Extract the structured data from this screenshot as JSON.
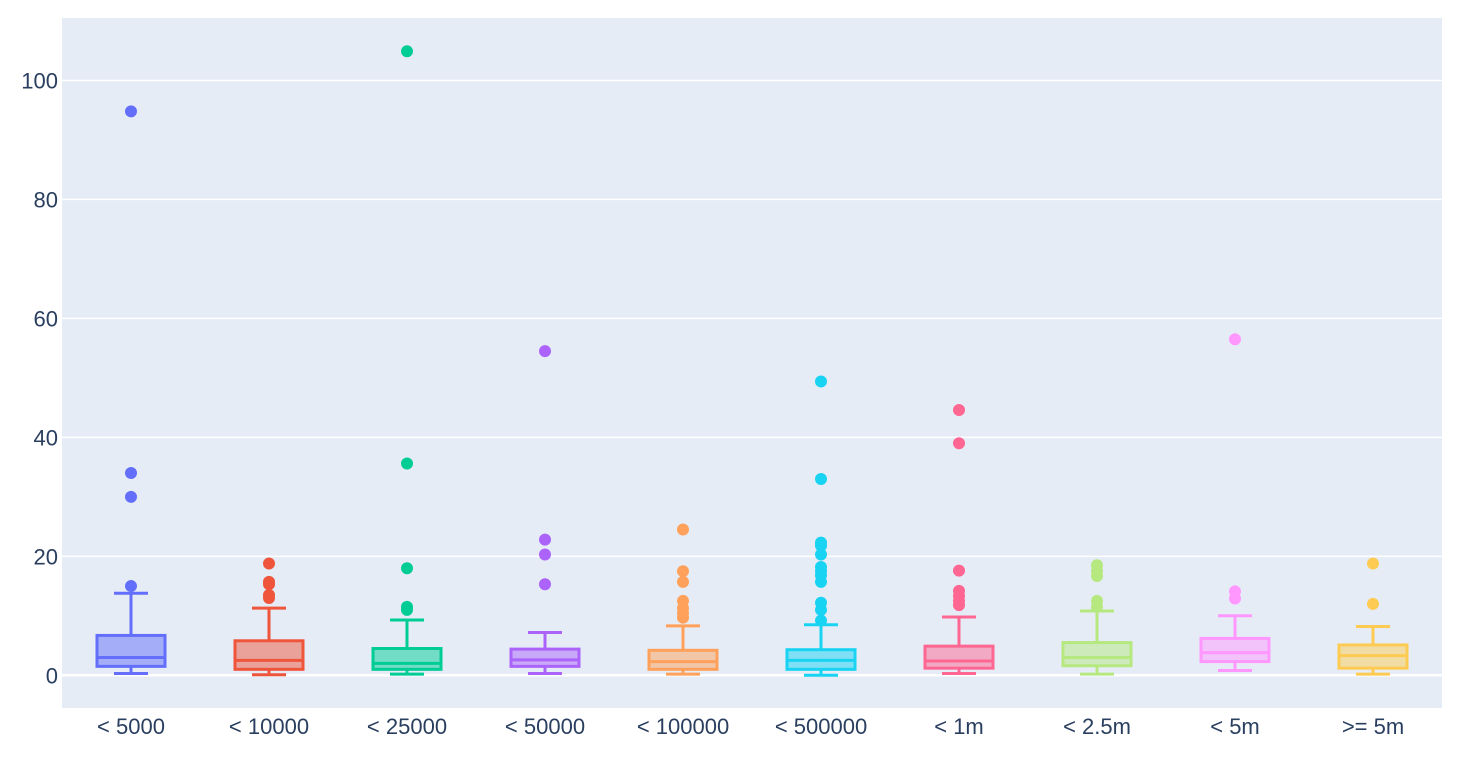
{
  "chart_data": {
    "type": "box",
    "title": "",
    "xlabel": "",
    "ylabel": "",
    "ylim": [
      -5.5,
      110.5
    ],
    "yticks": [
      0,
      20,
      40,
      60,
      80,
      100
    ],
    "grid": true,
    "background": "#e5ecf6",
    "tick_color": "#2a3f5f",
    "categories": [
      "< 5000",
      "< 10000",
      "< 25000",
      "< 50000",
      "< 100000",
      "< 500000",
      "< 1m",
      "< 2.5m",
      "< 5m",
      ">= 5m"
    ],
    "series": [
      {
        "category": "< 5000",
        "color": "#636efa",
        "min": 0.3,
        "q1": 1.5,
        "median": 3.0,
        "q3": 6.7,
        "max": 13.8,
        "outliers": [
          15.0,
          30.0,
          34.0,
          94.8
        ]
      },
      {
        "category": "< 10000",
        "color": "#ef553b",
        "min": 0.1,
        "q1": 1.0,
        "median": 2.5,
        "q3": 5.8,
        "max": 11.3,
        "outliers": [
          13.0,
          13.5,
          15.3,
          15.7,
          18.8
        ]
      },
      {
        "category": "< 25000",
        "color": "#00cc96",
        "min": 0.2,
        "q1": 1.0,
        "median": 2.0,
        "q3": 4.5,
        "max": 9.3,
        "outliers": [
          11.0,
          11.5,
          18.0,
          35.6,
          104.9
        ]
      },
      {
        "category": "< 50000",
        "color": "#ab63fa",
        "min": 0.3,
        "q1": 1.5,
        "median": 2.6,
        "q3": 4.4,
        "max": 7.2,
        "outliers": [
          15.3,
          20.3,
          22.8,
          54.5
        ]
      },
      {
        "category": "< 100000",
        "color": "#ffa15a",
        "min": 0.2,
        "q1": 1.0,
        "median": 2.3,
        "q3": 4.2,
        "max": 8.3,
        "outliers": [
          9.7,
          10.5,
          11.3,
          12.5,
          15.7,
          17.5,
          24.5
        ]
      },
      {
        "category": "< 500000",
        "color": "#19d3f3",
        "min": 0.0,
        "q1": 1.0,
        "median": 2.5,
        "q3": 4.3,
        "max": 8.5,
        "outliers": [
          9.2,
          11.0,
          12.2,
          15.7,
          16.8,
          17.5,
          18.2,
          20.3,
          21.8,
          22.3,
          33.0,
          49.4
        ]
      },
      {
        "category": "< 1m",
        "color": "#ff6692",
        "min": 0.3,
        "q1": 1.2,
        "median": 2.4,
        "q3": 4.9,
        "max": 9.8,
        "outliers": [
          11.8,
          12.5,
          13.3,
          14.2,
          17.6,
          39.0,
          44.6
        ]
      },
      {
        "category": "< 2.5m",
        "color": "#b6e880",
        "min": 0.2,
        "q1": 1.6,
        "median": 3.0,
        "q3": 5.5,
        "max": 10.8,
        "outliers": [
          11.5,
          12.5,
          16.7,
          17.5,
          18.5
        ]
      },
      {
        "category": "< 5m",
        "color": "#ff97ff",
        "min": 0.8,
        "q1": 2.3,
        "median": 3.8,
        "q3": 6.2,
        "max": 10.0,
        "outliers": [
          12.9,
          14.1,
          56.5
        ]
      },
      {
        "category": ">= 5m",
        "color": "#fecb52",
        "min": 0.2,
        "q1": 1.2,
        "median": 3.3,
        "q3": 5.1,
        "max": 8.2,
        "outliers": [
          12.0,
          18.8
        ]
      }
    ]
  }
}
